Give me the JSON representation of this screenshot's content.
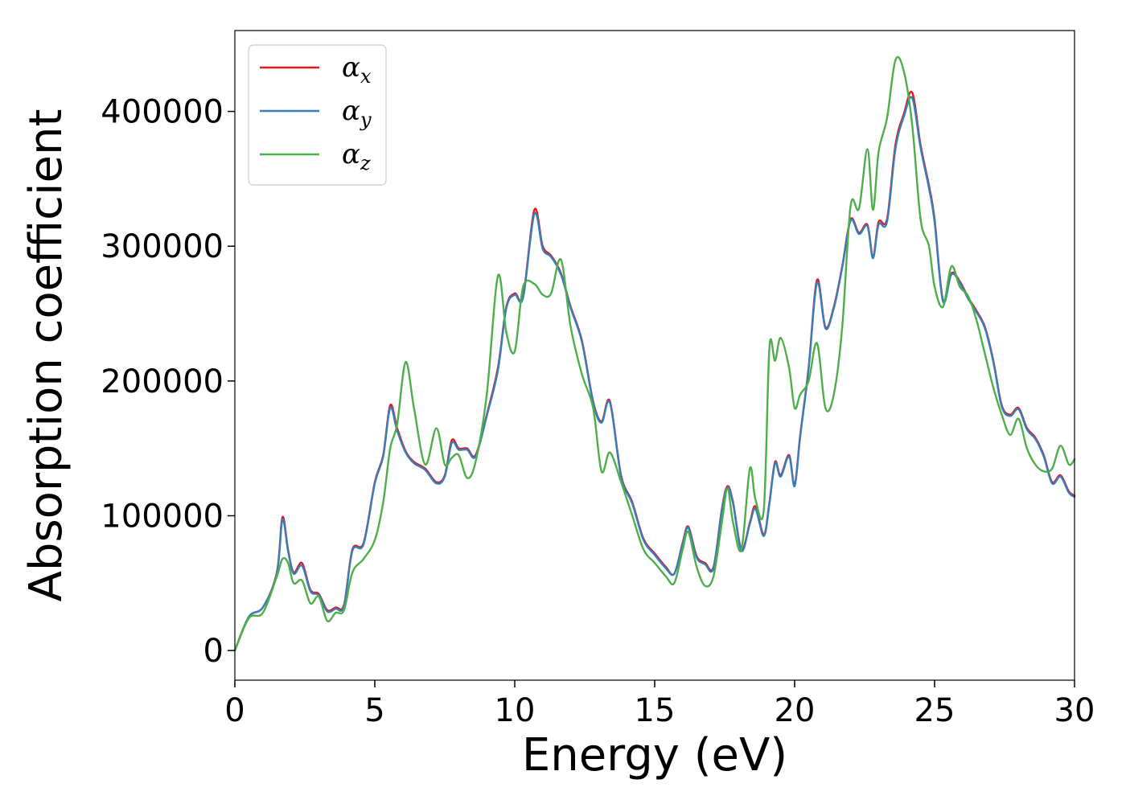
{
  "chart_data": {
    "type": "line",
    "title": "",
    "xlabel": "Energy (eV)",
    "ylabel": "Absorption coefficient",
    "xlim": [
      0,
      30
    ],
    "ylim": [
      -22000,
      460000
    ],
    "xticks": [
      0,
      5,
      10,
      15,
      20,
      25,
      30
    ],
    "yticks": [
      0,
      100000,
      200000,
      300000,
      400000
    ],
    "grid": false,
    "legend": {
      "placement": "top-left"
    },
    "x": [
      0,
      0.5,
      1.0,
      1.5,
      1.7,
      1.9,
      2.1,
      2.4,
      2.7,
      3.0,
      3.3,
      3.6,
      3.9,
      4.2,
      4.6,
      5.0,
      5.3,
      5.55,
      5.8,
      6.1,
      6.4,
      6.8,
      7.2,
      7.5,
      7.75,
      8.0,
      8.3,
      8.6,
      9.0,
      9.4,
      9.7,
      10.0,
      10.3,
      10.7,
      11.0,
      11.3,
      11.65,
      12.0,
      12.4,
      12.8,
      13.1,
      13.4,
      13.8,
      14.2,
      14.6,
      15.0,
      15.4,
      15.7,
      16.0,
      16.2,
      16.5,
      16.8,
      17.1,
      17.4,
      17.6,
      17.8,
      18.1,
      18.4,
      18.6,
      18.9,
      19.1,
      19.3,
      19.5,
      19.8,
      20.0,
      20.2,
      20.5,
      20.8,
      21.1,
      21.4,
      21.7,
      22.0,
      22.3,
      22.6,
      22.8,
      23.0,
      23.3,
      23.6,
      23.9,
      24.2,
      24.5,
      24.8,
      25.0,
      25.3,
      25.6,
      25.9,
      26.2,
      26.5,
      26.8,
      27.1,
      27.4,
      27.7,
      28.0,
      28.3,
      28.6,
      28.9,
      29.2,
      29.5,
      29.8,
      30.0
    ],
    "series": [
      {
        "name": "α",
        "subscript": "x",
        "color": "#e41a1c",
        "values": [
          0,
          25000,
          32000,
          58000,
          99000,
          75000,
          58000,
          65000,
          45000,
          42000,
          30000,
          32000,
          34000,
          75000,
          80000,
          125000,
          145000,
          182000,
          165000,
          148000,
          140000,
          135000,
          125000,
          130000,
          156000,
          150000,
          150000,
          145000,
          175000,
          210000,
          255000,
          265000,
          263000,
          327000,
          300000,
          293000,
          280000,
          255000,
          230000,
          185000,
          170000,
          185000,
          130000,
          110000,
          83000,
          72000,
          62000,
          57000,
          80000,
          92000,
          70000,
          65000,
          62000,
          105000,
          122000,
          110000,
          75000,
          95000,
          107000,
          86000,
          110000,
          140000,
          130000,
          145000,
          123000,
          160000,
          210000,
          275000,
          240000,
          255000,
          285000,
          320000,
          310000,
          316000,
          292000,
          318000,
          320000,
          375000,
          398000,
          414000,
          375000,
          345000,
          320000,
          260000,
          280000,
          274000,
          262000,
          252000,
          240000,
          215000,
          182000,
          175000,
          180000,
          165000,
          158000,
          145000,
          125000,
          130000,
          118000,
          115000
        ]
      },
      {
        "name": "α",
        "subscript": "y",
        "color": "#377eb8",
        "values": [
          0,
          25000,
          32000,
          57000,
          97000,
          74000,
          57000,
          63000,
          44000,
          41000,
          29000,
          31000,
          33000,
          74000,
          79000,
          124000,
          144000,
          180000,
          163000,
          147000,
          139000,
          134000,
          124000,
          129000,
          154000,
          149000,
          149000,
          144000,
          174000,
          208000,
          254000,
          264000,
          262000,
          324000,
          298000,
          292000,
          279000,
          254000,
          229000,
          184000,
          169000,
          184000,
          129000,
          109000,
          82000,
          71000,
          61000,
          57000,
          79000,
          91000,
          69000,
          64000,
          61000,
          104000,
          121000,
          109000,
          74000,
          94000,
          105000,
          85000,
          109000,
          139000,
          129000,
          144000,
          122000,
          159000,
          209000,
          273000,
          239000,
          254000,
          284000,
          319000,
          309000,
          315000,
          291000,
          316000,
          318000,
          372000,
          396000,
          410000,
          373000,
          343000,
          318000,
          259000,
          279000,
          273000,
          261000,
          251000,
          239000,
          214000,
          181000,
          174000,
          179000,
          164000,
          157000,
          144000,
          124000,
          129000,
          117000,
          114000
        ]
      },
      {
        "name": "α",
        "subscript": "z",
        "color": "#4daf4a",
        "values": [
          0,
          24000,
          28000,
          55000,
          68000,
          65000,
          50000,
          52000,
          35000,
          40000,
          22000,
          28000,
          30000,
          58000,
          68000,
          82000,
          110000,
          150000,
          168000,
          214000,
          180000,
          138000,
          165000,
          138000,
          143000,
          145000,
          128000,
          140000,
          190000,
          278000,
          236000,
          222000,
          270000,
          272000,
          264000,
          265000,
          290000,
          240000,
          205000,
          180000,
          133000,
          147000,
          125000,
          100000,
          75000,
          65000,
          55000,
          50000,
          75000,
          88000,
          62000,
          48000,
          55000,
          95000,
          120000,
          95000,
          75000,
          135000,
          112000,
          105000,
          225000,
          215000,
          232000,
          210000,
          180000,
          190000,
          200000,
          228000,
          180000,
          190000,
          240000,
          330000,
          328000,
          372000,
          327000,
          370000,
          395000,
          438000,
          430000,
          390000,
          320000,
          300000,
          270000,
          255000,
          285000,
          270000,
          263000,
          245000,
          220000,
          195000,
          175000,
          160000,
          172000,
          150000,
          138000,
          133000,
          135000,
          152000,
          138000,
          142000
        ]
      }
    ]
  }
}
